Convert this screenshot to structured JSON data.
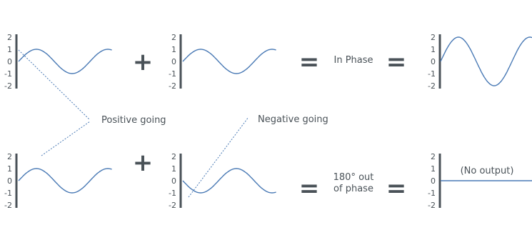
{
  "chart_data": [
    {
      "type": "line",
      "name": "top-left",
      "wave": "sine",
      "amplitude": 1,
      "ylim": [
        -2,
        2
      ],
      "yticks": [
        "2",
        "1",
        "0",
        "-1",
        "-2"
      ]
    },
    {
      "type": "line",
      "name": "top-middle",
      "wave": "sine",
      "amplitude": 1,
      "ylim": [
        -2,
        2
      ],
      "yticks": [
        "2",
        "1",
        "0",
        "-1",
        "-2"
      ]
    },
    {
      "type": "line",
      "name": "top-right",
      "wave": "sine",
      "amplitude": 2,
      "ylim": [
        -2,
        2
      ],
      "yticks": [
        "2",
        "1",
        "0",
        "-1",
        "-2"
      ]
    },
    {
      "type": "line",
      "name": "bottom-left",
      "wave": "sine",
      "amplitude": 1,
      "ylim": [
        -2,
        2
      ],
      "yticks": [
        "2",
        "1",
        "0",
        "-1",
        "-2"
      ]
    },
    {
      "type": "line",
      "name": "bottom-middle",
      "wave": "sine",
      "amplitude": -1,
      "ylim": [
        -2,
        2
      ],
      "yticks": [
        "2",
        "1",
        "0",
        "-1",
        "-2"
      ]
    },
    {
      "type": "line",
      "name": "bottom-right",
      "wave": "flat",
      "amplitude": 0,
      "ylim": [
        -2,
        2
      ],
      "yticks": [
        "2",
        "1",
        "0",
        "-1",
        "-2"
      ]
    }
  ],
  "operators": {
    "plus": "+",
    "equals": "="
  },
  "labels": {
    "positive_going": "Positive going",
    "negative_going": "Negative going",
    "in_phase": "In Phase",
    "out_of_phase_line1": "180° out",
    "out_of_phase_line2": "of phase",
    "no_output": "(No output)"
  },
  "colors": {
    "wave": "#4a7ab5",
    "axis": "#4a5258",
    "text": "#4a5258",
    "dotted": "#4a7ab5"
  }
}
